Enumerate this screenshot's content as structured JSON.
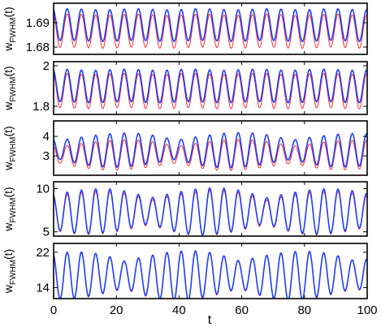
{
  "chart_data": {
    "type": "line",
    "layout": "5 vertically stacked panels sharing x-axis",
    "xlabel": "t",
    "xlim": [
      0,
      100
    ],
    "xticks": [
      "0",
      "20",
      "40",
      "60",
      "80",
      "100"
    ],
    "grid": false,
    "legend": "none",
    "colors": {
      "blue": "#1f3cff",
      "red": "#ff1a1a",
      "frame": "#000000"
    },
    "panels": [
      {
        "ylabel_main": "w",
        "ylabel_sub": "FWHM",
        "ylabel_tail": "(t)",
        "ylim": [
          1.677,
          1.698
        ],
        "yticks": [
          "1.69",
          "1.68"
        ],
        "ytick_values": [
          1.69,
          1.68
        ],
        "series": [
          {
            "color": "blue",
            "mean": 1.689,
            "amp": 0.0065,
            "env": "steady"
          },
          {
            "color": "red",
            "mean": 1.6865,
            "amp": 0.0068,
            "env": "steady"
          }
        ]
      },
      {
        "ylabel_main": "w",
        "ylabel_sub": "FWHM",
        "ylabel_tail": "(t)",
        "ylim": [
          1.76,
          2.02
        ],
        "yticks": [
          "2",
          "1.8"
        ],
        "ytick_values": [
          2.0,
          1.8
        ],
        "series": [
          {
            "color": "blue",
            "mean": 1.9,
            "amp": 0.08,
            "env": "steady"
          },
          {
            "color": "red",
            "mean": 1.875,
            "amp": 0.085,
            "env": "steady"
          }
        ]
      },
      {
        "ylabel_main": "w",
        "ylabel_sub": "FWHM",
        "ylabel_tail": "(t)",
        "ylim": [
          2.0,
          4.8
        ],
        "yticks": [
          "4",
          "3"
        ],
        "ytick_values": [
          4,
          3
        ],
        "series": [
          {
            "color": "blue",
            "mean": 3.3,
            "amp": 0.9,
            "env": "beating"
          },
          {
            "color": "red",
            "mean": 3.05,
            "amp": 0.8,
            "env": "beating"
          }
        ]
      },
      {
        "ylabel_main": "w",
        "ylabel_sub": "FWHM",
        "ylabel_tail": "(t)",
        "ylim": [
          4.5,
          10.8
        ],
        "yticks": [
          "10",
          "5"
        ],
        "ytick_values": [
          10,
          5
        ],
        "series": [
          {
            "color": "blue",
            "mean": 7.4,
            "amp": 2.7,
            "env": "beating"
          },
          {
            "color": "red",
            "mean": 7.2,
            "amp": 2.6,
            "env": "beating"
          }
        ]
      },
      {
        "ylabel_main": "w",
        "ylabel_sub": "FWHM",
        "ylabel_tail": "(t)",
        "ylim": [
          11.5,
          24
        ],
        "yticks": [
          "22",
          "14"
        ],
        "ytick_values": [
          22,
          14
        ],
        "series": [
          {
            "color": "blue",
            "mean": 16.8,
            "amp": 5.6,
            "env": "beating"
          },
          {
            "color": "red",
            "mean": 16.7,
            "amp": 5.7,
            "env": "beating"
          }
        ]
      }
    ],
    "oscillation": {
      "cycles_over_range": 22,
      "sample_step": 0.1
    }
  }
}
